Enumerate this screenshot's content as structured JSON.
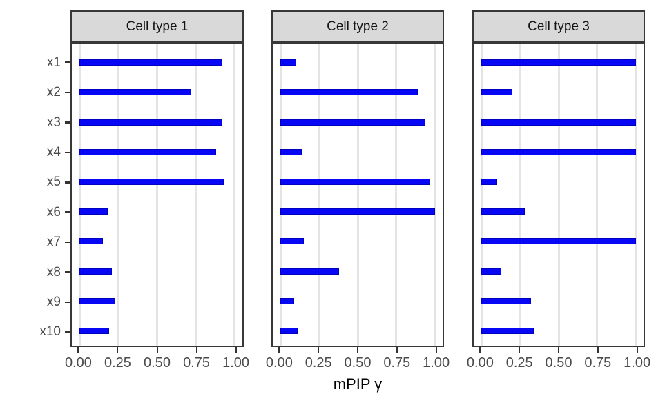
{
  "chart_data": {
    "type": "bar",
    "orientation": "horizontal",
    "title": "",
    "xlabel": "mPIP γ",
    "ylabel": "",
    "categories": [
      "x1",
      "x2",
      "x3",
      "x4",
      "x5",
      "x6",
      "x7",
      "x8",
      "x9",
      "x10"
    ],
    "x_ticks": [
      "0.00",
      "0.25",
      "0.50",
      "0.75",
      "1.00"
    ],
    "x_tick_values": [
      0,
      0.25,
      0.5,
      0.75,
      1.0
    ],
    "xlim": [
      -0.05,
      1.05
    ],
    "grid": "major-x",
    "legend": false,
    "bar_color": "#0707f5",
    "bar_border_color": "#0000c0",
    "facets": [
      {
        "label": "Cell type 1",
        "values": [
          0.92,
          0.72,
          0.92,
          0.88,
          0.93,
          0.18,
          0.15,
          0.21,
          0.23,
          0.19
        ]
      },
      {
        "label": "Cell type 2",
        "values": [
          0.1,
          0.89,
          0.94,
          0.14,
          0.97,
          1.0,
          0.15,
          0.38,
          0.09,
          0.11
        ]
      },
      {
        "label": "Cell type 3",
        "values": [
          1.0,
          0.2,
          1.0,
          1.0,
          0.1,
          0.28,
          1.0,
          0.13,
          0.32,
          0.34
        ]
      }
    ]
  },
  "colors": {
    "bar": "#0707f5",
    "bar_border": "#0000c0",
    "gridline": "#e4e4e4",
    "strip_background": "#d9d9d9",
    "panel_border": "#383838",
    "axis_text": "#4a4a4a",
    "strip_text": "#141414",
    "title_text": "#000000"
  }
}
